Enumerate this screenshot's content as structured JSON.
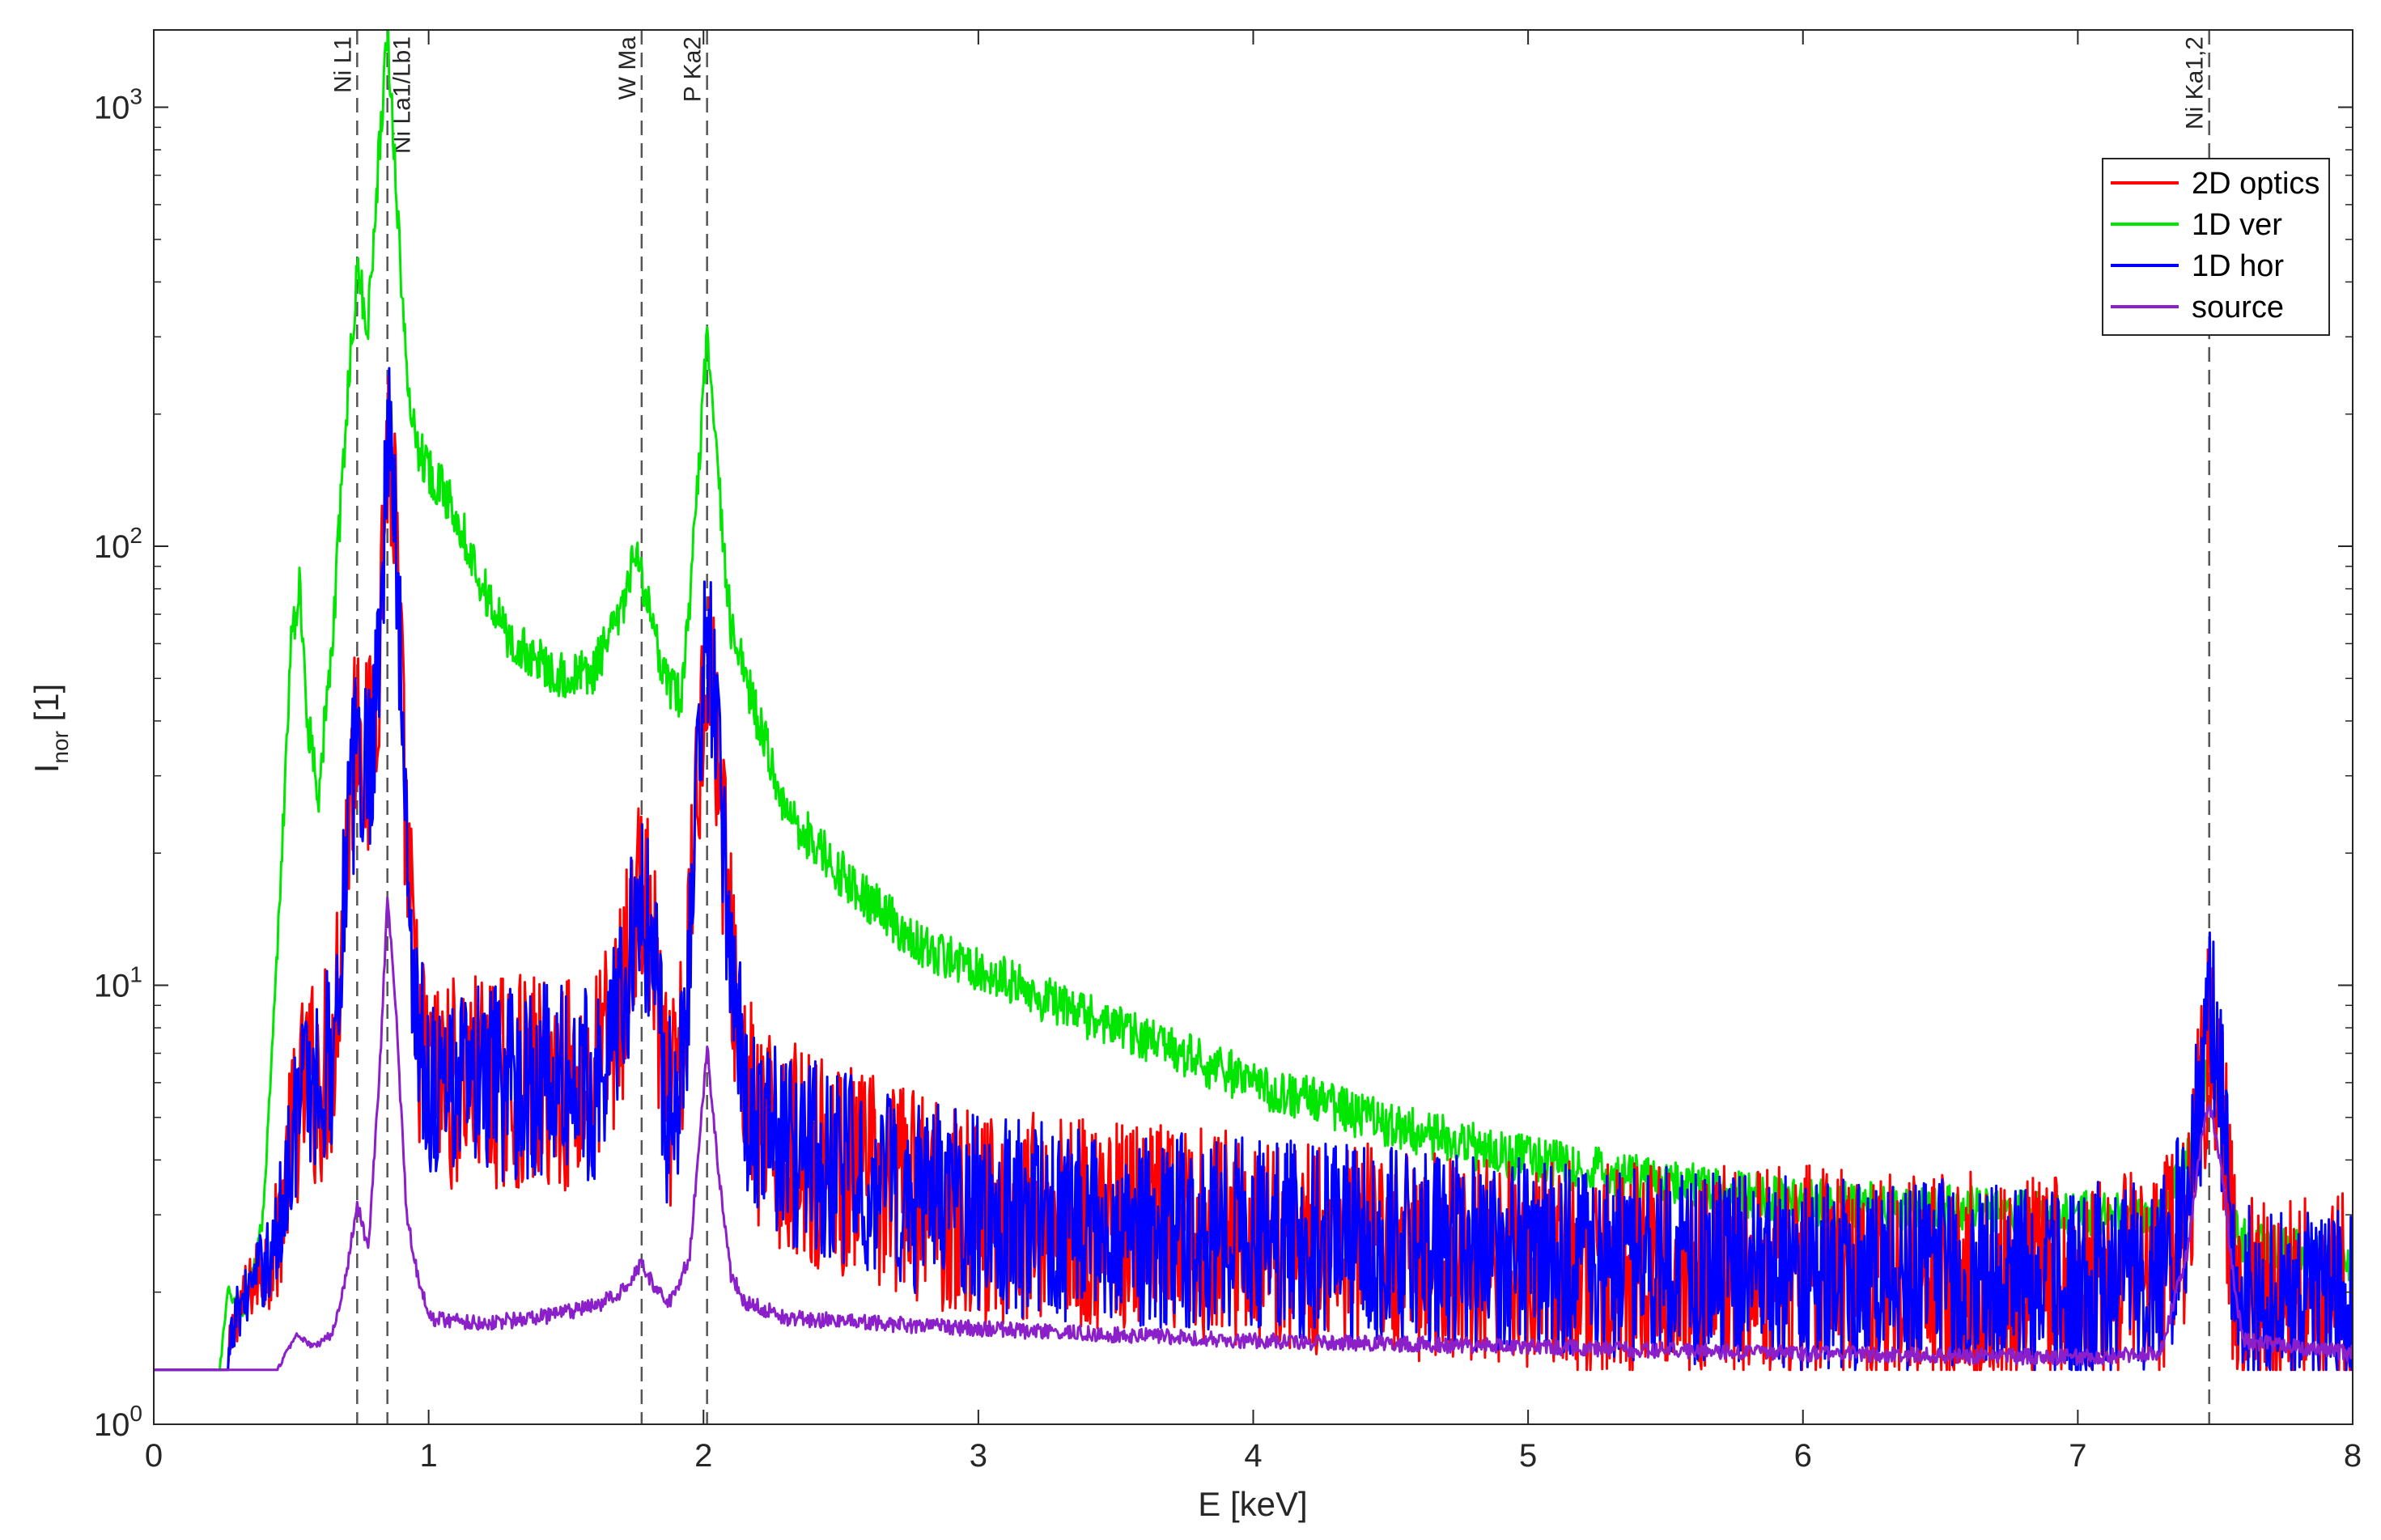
{
  "chart_data": {
    "type": "line",
    "xlabel": "E [keV]",
    "ylabel_main": "I",
    "ylabel_sub": "nor",
    "ylabel_unit": " [1]",
    "xlim": [
      0,
      8
    ],
    "ylim": [
      1,
      1500
    ],
    "yscale": "log",
    "grid": false,
    "legend_position": "top-right",
    "xticks": [
      0,
      1,
      2,
      3,
      4,
      5,
      6,
      7,
      8
    ],
    "xtick_labels": [
      "0",
      "1",
      "2",
      "3",
      "4",
      "5",
      "6",
      "7",
      "8"
    ],
    "yticks": [
      1,
      10,
      100,
      1000
    ],
    "ytick_labels": [
      {
        "base": "10",
        "exp": "0"
      },
      {
        "base": "10",
        "exp": "1"
      },
      {
        "base": "10",
        "exp": "2"
      },
      {
        "base": "10",
        "exp": "3"
      }
    ],
    "annotations": [
      {
        "label": "Ni L1",
        "x": 0.74,
        "side": "left"
      },
      {
        "label": "Ni La1/Lb1",
        "x": 0.85,
        "side": "right"
      },
      {
        "label": "W Ma",
        "x": 1.775,
        "side": "left"
      },
      {
        "label": "P Ka2",
        "x": 2.013,
        "side": "left"
      },
      {
        "label": "Ni Ka1,2",
        "x": 7.478,
        "side": "left"
      }
    ],
    "series": [
      {
        "name": "2D optics",
        "color": "#ff0000",
        "noise": 0.55,
        "points": [
          [
            0,
            1.33
          ],
          [
            0.27,
            1.33
          ],
          [
            0.3,
            1.8
          ],
          [
            0.45,
            2.6
          ],
          [
            0.5,
            4.5
          ],
          [
            0.55,
            6
          ],
          [
            0.6,
            6
          ],
          [
            0.65,
            7
          ],
          [
            0.7,
            20
          ],
          [
            0.74,
            45
          ],
          [
            0.78,
            30
          ],
          [
            0.82,
            60
          ],
          [
            0.85,
            180
          ],
          [
            0.88,
            110
          ],
          [
            0.92,
            20
          ],
          [
            0.96,
            8
          ],
          [
            1.0,
            6
          ],
          [
            1.2,
            6
          ],
          [
            1.4,
            6
          ],
          [
            1.6,
            6
          ],
          [
            1.7,
            9
          ],
          [
            1.775,
            17
          ],
          [
            1.82,
            11
          ],
          [
            1.87,
            5
          ],
          [
            1.93,
            7
          ],
          [
            1.97,
            25
          ],
          [
            2.013,
            62
          ],
          [
            2.05,
            35
          ],
          [
            2.1,
            12
          ],
          [
            2.15,
            6
          ],
          [
            2.2,
            4.5
          ],
          [
            2.5,
            3.8
          ],
          [
            3.0,
            3.0
          ],
          [
            3.5,
            2.8
          ],
          [
            4.0,
            2.6
          ],
          [
            5.0,
            2.3
          ],
          [
            6.0,
            2.2
          ],
          [
            7.0,
            2.1
          ],
          [
            7.3,
            2.2
          ],
          [
            7.4,
            3
          ],
          [
            7.45,
            5.5
          ],
          [
            7.478,
            8
          ],
          [
            7.52,
            6
          ],
          [
            7.56,
            2.5
          ],
          [
            7.6,
            1.9
          ],
          [
            8.0,
            1.9
          ]
        ]
      },
      {
        "name": "1D ver",
        "color": "#00e600",
        "noise": 0.12,
        "points": [
          [
            0,
            1.33
          ],
          [
            0.24,
            1.33
          ],
          [
            0.27,
            2
          ],
          [
            0.33,
            1.8
          ],
          [
            0.4,
            3
          ],
          [
            0.45,
            12
          ],
          [
            0.5,
            60
          ],
          [
            0.53,
            80
          ],
          [
            0.56,
            40
          ],
          [
            0.6,
            28
          ],
          [
            0.65,
            60
          ],
          [
            0.7,
            200
          ],
          [
            0.74,
            420
          ],
          [
            0.78,
            320
          ],
          [
            0.82,
            800
          ],
          [
            0.85,
            1500
          ],
          [
            0.88,
            700
          ],
          [
            0.92,
            240
          ],
          [
            0.96,
            170
          ],
          [
            1.0,
            150
          ],
          [
            1.1,
            120
          ],
          [
            1.2,
            80
          ],
          [
            1.3,
            60
          ],
          [
            1.4,
            55
          ],
          [
            1.5,
            50
          ],
          [
            1.6,
            52
          ],
          [
            1.7,
            70
          ],
          [
            1.75,
            95
          ],
          [
            1.79,
            80
          ],
          [
            1.85,
            50
          ],
          [
            1.92,
            45
          ],
          [
            1.97,
            110
          ],
          [
            2.013,
            300
          ],
          [
            2.05,
            150
          ],
          [
            2.1,
            65
          ],
          [
            2.2,
            40
          ],
          [
            2.3,
            25
          ],
          [
            2.5,
            18
          ],
          [
            2.8,
            12
          ],
          [
            3.0,
            11
          ],
          [
            3.2,
            9.5
          ],
          [
            3.5,
            8
          ],
          [
            4.0,
            6
          ],
          [
            4.5,
            4.8
          ],
          [
            5.0,
            4
          ],
          [
            6.0,
            3.2
          ],
          [
            7.0,
            3
          ],
          [
            7.3,
            3
          ],
          [
            7.4,
            4
          ],
          [
            7.478,
            7
          ],
          [
            7.52,
            5
          ],
          [
            7.56,
            3
          ],
          [
            7.6,
            2.6
          ],
          [
            8.0,
            2.4
          ]
        ]
      },
      {
        "name": "1D hor",
        "color": "#0000ff",
        "noise": 0.5,
        "points": [
          [
            0,
            1.33
          ],
          [
            0.27,
            1.33
          ],
          [
            0.3,
            1.8
          ],
          [
            0.45,
            2.6
          ],
          [
            0.5,
            4.5
          ],
          [
            0.55,
            6
          ],
          [
            0.6,
            6
          ],
          [
            0.65,
            7
          ],
          [
            0.7,
            20
          ],
          [
            0.74,
            35
          ],
          [
            0.78,
            30
          ],
          [
            0.82,
            60
          ],
          [
            0.85,
            180
          ],
          [
            0.88,
            110
          ],
          [
            0.92,
            20
          ],
          [
            0.96,
            8
          ],
          [
            1.0,
            6
          ],
          [
            1.2,
            6
          ],
          [
            1.4,
            6
          ],
          [
            1.6,
            6
          ],
          [
            1.7,
            9
          ],
          [
            1.775,
            16
          ],
          [
            1.82,
            11
          ],
          [
            1.87,
            5
          ],
          [
            1.93,
            7
          ],
          [
            1.97,
            25
          ],
          [
            2.013,
            65
          ],
          [
            2.05,
            35
          ],
          [
            2.1,
            12
          ],
          [
            2.15,
            6
          ],
          [
            2.2,
            4.5
          ],
          [
            2.5,
            3.8
          ],
          [
            3.0,
            3.0
          ],
          [
            3.5,
            2.8
          ],
          [
            4.0,
            2.7
          ],
          [
            5.0,
            2.4
          ],
          [
            6.0,
            2.2
          ],
          [
            7.0,
            2.1
          ],
          [
            7.3,
            2.2
          ],
          [
            7.4,
            3
          ],
          [
            7.45,
            6
          ],
          [
            7.478,
            10
          ],
          [
            7.52,
            6
          ],
          [
            7.56,
            2.5
          ],
          [
            7.6,
            1.9
          ],
          [
            8.0,
            1.9
          ]
        ]
      },
      {
        "name": "source",
        "color": "#8b1fc9",
        "noise": 0.04,
        "points": [
          [
            0,
            1.33
          ],
          [
            0.45,
            1.33
          ],
          [
            0.48,
            1.45
          ],
          [
            0.52,
            1.6
          ],
          [
            0.58,
            1.5
          ],
          [
            0.65,
            1.6
          ],
          [
            0.7,
            2.2
          ],
          [
            0.74,
            3.2
          ],
          [
            0.78,
            2.5
          ],
          [
            0.82,
            6
          ],
          [
            0.85,
            16
          ],
          [
            0.88,
            9
          ],
          [
            0.92,
            3
          ],
          [
            0.96,
            2.2
          ],
          [
            1.0,
            1.75
          ],
          [
            1.2,
            1.7
          ],
          [
            1.4,
            1.75
          ],
          [
            1.6,
            1.85
          ],
          [
            1.7,
            2.0
          ],
          [
            1.775,
            2.35
          ],
          [
            1.82,
            2.05
          ],
          [
            1.88,
            1.9
          ],
          [
            1.95,
            2.4
          ],
          [
            2.013,
            7.3
          ],
          [
            2.05,
            4
          ],
          [
            2.1,
            2.2
          ],
          [
            2.15,
            1.9
          ],
          [
            2.3,
            1.75
          ],
          [
            2.6,
            1.7
          ],
          [
            3.0,
            1.65
          ],
          [
            3.5,
            1.6
          ],
          [
            4.0,
            1.55
          ],
          [
            5.0,
            1.5
          ],
          [
            6.0,
            1.45
          ],
          [
            7.0,
            1.42
          ],
          [
            7.3,
            1.45
          ],
          [
            7.4,
            2.5
          ],
          [
            7.45,
            4.5
          ],
          [
            7.478,
            5.3
          ],
          [
            7.52,
            4
          ],
          [
            7.56,
            2.3
          ],
          [
            7.6,
            1.55
          ],
          [
            8.0,
            1.45
          ]
        ]
      }
    ]
  }
}
